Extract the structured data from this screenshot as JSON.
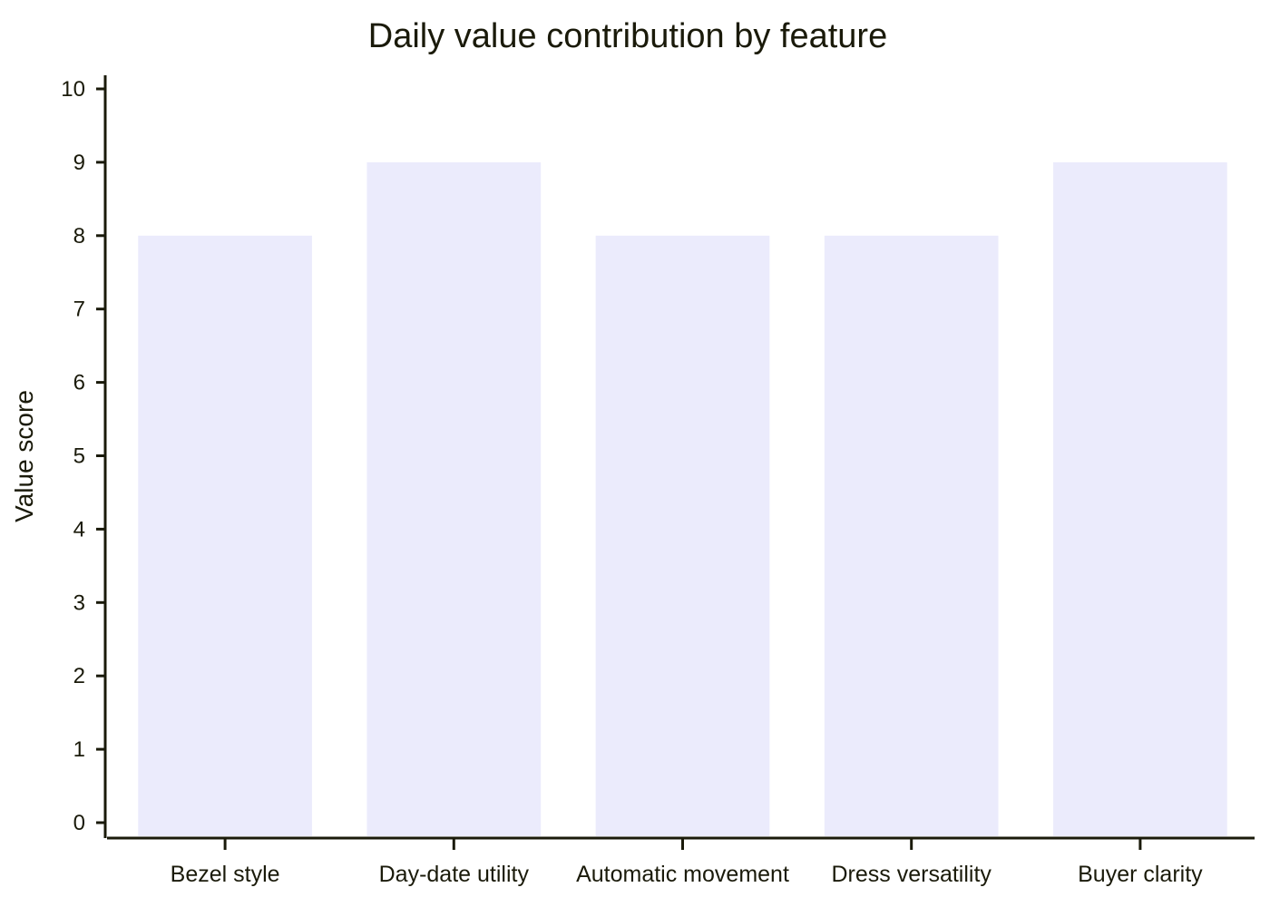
{
  "chart_data": {
    "type": "bar",
    "title": "Daily value contribution by feature",
    "xlabel": "",
    "ylabel": "Value score",
    "categories": [
      "Bezel style",
      "Day-date utility",
      "Automatic movement",
      "Dress versatility",
      "Buyer clarity"
    ],
    "values": [
      8,
      9,
      8,
      8,
      9
    ],
    "ylim": [
      0,
      10
    ],
    "yticks": [
      "0",
      "1",
      "2",
      "3",
      "4",
      "5",
      "6",
      "7",
      "8",
      "9",
      "10"
    ],
    "grid": false,
    "legend": "none",
    "bar_color": "#ebebfc",
    "axis_color": "#1a1a0a"
  }
}
